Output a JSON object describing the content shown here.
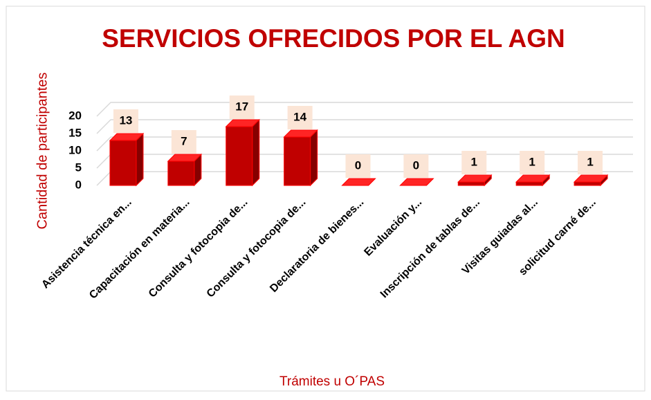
{
  "chart_data": {
    "type": "bar3d",
    "title": "SERVICIOS OFRECIDOS POR EL AGN",
    "y_label": "Cantidad de participantes",
    "x_label": "Trámites u O´PAS",
    "categories": [
      "Asistencia técnica en...",
      "Capacitación en materia...",
      "Consulta y fotocopia de...",
      "Consulta y fotocopia de...",
      "Declaratoria de bienes...",
      "Evaluación y...",
      "Inscripción de tablas de...",
      "Visitas guiadas al...",
      "solicitud carné de..."
    ],
    "values": [
      13,
      7,
      17,
      14,
      0,
      0,
      1,
      1,
      1
    ],
    "color": "#c00000",
    "ylim": [
      0,
      20
    ],
    "yticks": [
      0,
      5,
      10,
      15,
      20
    ],
    "grid": true
  }
}
